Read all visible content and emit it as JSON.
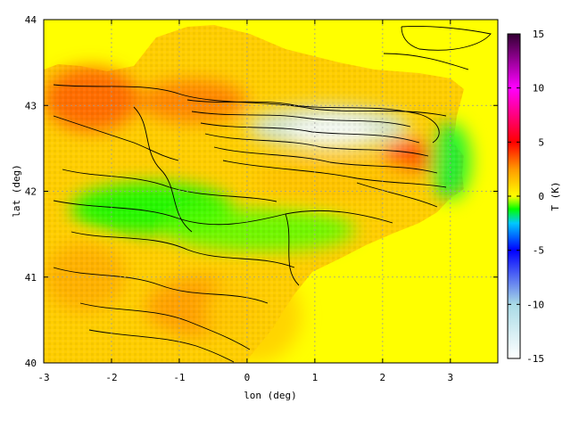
{
  "chart_data": {
    "type": "heatmap",
    "title": "",
    "xlabel": "lon (deg)",
    "ylabel": "lat (deg)",
    "colorbar_label": "T (K)",
    "xlim": [
      -3,
      3.7
    ],
    "ylim": [
      40,
      44
    ],
    "xticks": [
      -3,
      -2,
      -1,
      0,
      1,
      2,
      3
    ],
    "yticks": [
      40,
      41,
      42,
      43,
      44
    ],
    "colorbar_range": [
      -15,
      15
    ],
    "colorbar_ticks": [
      -15,
      -10,
      -5,
      0,
      5,
      10,
      15
    ],
    "grid": true,
    "sea_value": 0,
    "colormap": [
      {
        "value": -15,
        "color": "#ffffff"
      },
      {
        "value": -10,
        "color": "#a9dbe6"
      },
      {
        "value": -5,
        "color": "#0000ff"
      },
      {
        "value": -2.5,
        "color": "#00c8ff"
      },
      {
        "value": -1.2,
        "color": "#00ff00"
      },
      {
        "value": 0,
        "color": "#ffff00"
      },
      {
        "value": 2.5,
        "color": "#ff9900"
      },
      {
        "value": 5,
        "color": "#ff0000"
      },
      {
        "value": 10,
        "color": "#ff00ff"
      },
      {
        "value": 15,
        "color": "#330033"
      }
    ],
    "regions": [
      {
        "lon": [
          -3.0,
          -1.6
        ],
        "lat": [
          42.7,
          43.45
        ],
        "value": 3.5
      },
      {
        "lon": [
          -1.6,
          0.0
        ],
        "lat": [
          42.8,
          43.3
        ],
        "value": 3.0
      },
      {
        "lon": [
          0.0,
          2.4
        ],
        "lat": [
          42.5,
          43.0
        ],
        "value": -12
      },
      {
        "lon": [
          0.6,
          1.9
        ],
        "lat": [
          42.55,
          42.85
        ],
        "value": -15
      },
      {
        "lon": [
          2.0,
          2.8
        ],
        "lat": [
          42.2,
          42.6
        ],
        "value": 4
      },
      {
        "lon": [
          -2.6,
          -0.2
        ],
        "lat": [
          41.5,
          42.1
        ],
        "value": -1.2
      },
      {
        "lon": [
          -1.2,
          1.6
        ],
        "lat": [
          41.3,
          41.8
        ],
        "value": -0.8
      },
      {
        "lon": [
          -3.0,
          -1.8
        ],
        "lat": [
          40.6,
          41.4
        ],
        "value": 2.0
      },
      {
        "lon": [
          -1.5,
          0.2
        ],
        "lat": [
          40.3,
          41.0
        ],
        "value": 2.5
      },
      {
        "lon": [
          0.1,
          2.5
        ],
        "lat": [
          41.9,
          42.4
        ],
        "value": 1.5
      },
      {
        "lon": [
          2.7,
          3.3
        ],
        "lat": [
          41.9,
          42.8
        ],
        "value": -1.5
      },
      {
        "lon": [
          -0.6,
          0.8
        ],
        "lat": [
          40.0,
          41.1
        ],
        "value": 1.2
      }
    ]
  }
}
